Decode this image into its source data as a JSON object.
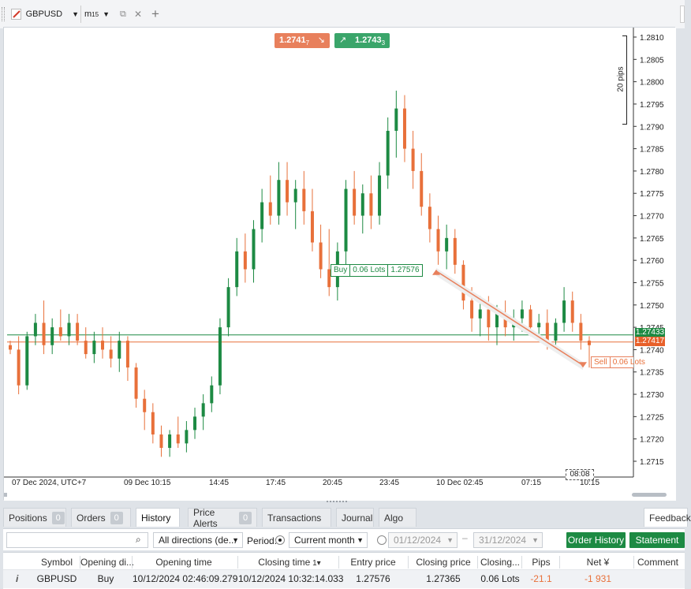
{
  "tab": {
    "symbol": "GBPUSD",
    "timeframe": "m",
    "timeframe_sub": "15"
  },
  "prices": {
    "sell_main": "1.2741",
    "sell_sub": "7",
    "buy_main": "1.2743",
    "buy_sub": "3"
  },
  "pips_label": "20 pips",
  "y_ticks": [
    "1.2810",
    "1.2805",
    "1.2800",
    "1.2795",
    "1.2790",
    "1.2785",
    "1.2780",
    "1.2775",
    "1.2770",
    "1.2765",
    "1.2760",
    "1.2755",
    "1.2750",
    "1.2745",
    "1.2740",
    "1.2735",
    "1.2730",
    "1.2725",
    "1.2720",
    "1.2715"
  ],
  "price_tags": {
    "ask": "1.27433",
    "bid": "1.27417"
  },
  "x_labels": [
    "07 Dec 2024, UTC+7",
    "09 Dec 10:15",
    "14:45",
    "17:45",
    "20:45",
    "23:45",
    "10 Dec 02:45",
    "07:15",
    "10:15"
  ],
  "crosshair_time": "08:08",
  "trade_buy": {
    "side": "Buy",
    "lots": "0.06 Lots",
    "price": "1.27576"
  },
  "trade_sell": {
    "side": "Sell",
    "lots": "0.06 Lots"
  },
  "colors": {
    "up": "#1d8a43",
    "down": "#e8703a",
    "sell": "#e8805c",
    "buy": "#3aa56a"
  },
  "bottom_tabs": [
    {
      "label": "Positions",
      "count": "0"
    },
    {
      "label": "Orders",
      "count": "0"
    },
    {
      "label": "History"
    },
    {
      "label": "Price Alerts",
      "count": "0"
    },
    {
      "label": "Transactions"
    },
    {
      "label": "Journal"
    },
    {
      "label": "Algo"
    }
  ],
  "feedback_label": "Feedback",
  "filters": {
    "search_placeholder": "",
    "direction": "All directions (de...",
    "period_label": "Period:",
    "period_value": "Current month",
    "date_from": "01/12/2024",
    "date_to": "31/12/2024",
    "order_history_btn": "Order History",
    "statement_btn": "Statement"
  },
  "table": {
    "headers": [
      "Symbol",
      "Opening di...",
      "Opening time",
      "Closing time",
      "Entry price",
      "Closing price",
      "Closing...",
      "Pips",
      "Net ¥",
      "Comment"
    ],
    "sort_index": "1",
    "rows": [
      {
        "info": "i",
        "symbol": "GBPUSD",
        "direction": "Buy",
        "open_time": "10/12/2024 02:46:09.279",
        "close_time": "10/12/2024 10:32:14.033",
        "entry": "1.27576",
        "close": "1.27365",
        "lots": "0.06 Lots",
        "pips": "-21.1",
        "net": "-1 931",
        "comment": ""
      }
    ]
  },
  "chart_data": {
    "type": "candlestick",
    "ylim": [
      1.2713,
      1.2812
    ],
    "candles": [
      [
        1.2741,
        1.2742,
        1.2739,
        1.274
      ],
      [
        1.274,
        1.2743,
        1.273,
        1.2732
      ],
      [
        1.2732,
        1.2744,
        1.2731,
        1.2743
      ],
      [
        1.2743,
        1.2748,
        1.2741,
        1.2746
      ],
      [
        1.2746,
        1.2751,
        1.2739,
        1.2741
      ],
      [
        1.2741,
        1.2747,
        1.2739,
        1.2745
      ],
      [
        1.2745,
        1.2749,
        1.2742,
        1.2743
      ],
      [
        1.2743,
        1.2748,
        1.2741,
        1.2746
      ],
      [
        1.2746,
        1.2748,
        1.2741,
        1.2742
      ],
      [
        1.2742,
        1.2745,
        1.2738,
        1.2739
      ],
      [
        1.2739,
        1.2744,
        1.2737,
        1.2742
      ],
      [
        1.2742,
        1.2745,
        1.2738,
        1.274
      ],
      [
        1.274,
        1.2743,
        1.2736,
        1.2738
      ],
      [
        1.2738,
        1.2744,
        1.2735,
        1.2742
      ],
      [
        1.2742,
        1.2743,
        1.2733,
        1.2736
      ],
      [
        1.2736,
        1.2737,
        1.2727,
        1.2729
      ],
      [
        1.2729,
        1.2731,
        1.2722,
        1.2726
      ],
      [
        1.2726,
        1.2728,
        1.2719,
        1.2721
      ],
      [
        1.2721,
        1.2723,
        1.2716,
        1.2718
      ],
      [
        1.2718,
        1.2722,
        1.2716,
        1.2721
      ],
      [
        1.2721,
        1.2725,
        1.2718,
        1.2719
      ],
      [
        1.2719,
        1.2724,
        1.2717,
        1.2722
      ],
      [
        1.2722,
        1.2727,
        1.272,
        1.2725
      ],
      [
        1.2725,
        1.273,
        1.2722,
        1.2728
      ],
      [
        1.2728,
        1.2734,
        1.2726,
        1.2732
      ],
      [
        1.2732,
        1.2747,
        1.273,
        1.2745
      ],
      [
        1.2745,
        1.2756,
        1.2743,
        1.2754
      ],
      [
        1.2754,
        1.2765,
        1.2752,
        1.2762
      ],
      [
        1.2762,
        1.2766,
        1.2755,
        1.2758
      ],
      [
        1.2758,
        1.2769,
        1.2755,
        1.2767
      ],
      [
        1.2767,
        1.2776,
        1.2764,
        1.2773
      ],
      [
        1.2773,
        1.2779,
        1.2768,
        1.277
      ],
      [
        1.277,
        1.2782,
        1.2768,
        1.2778
      ],
      [
        1.2778,
        1.2782,
        1.277,
        1.2773
      ],
      [
        1.2773,
        1.2778,
        1.2767,
        1.2776
      ],
      [
        1.2776,
        1.278,
        1.2768,
        1.2771
      ],
      [
        1.2771,
        1.2776,
        1.2762,
        1.2764
      ],
      [
        1.2764,
        1.2768,
        1.2756,
        1.2758
      ],
      [
        1.2758,
        1.2767,
        1.2752,
        1.2754
      ],
      [
        1.2754,
        1.2764,
        1.2751,
        1.2762
      ],
      [
        1.2762,
        1.2778,
        1.2758,
        1.2776
      ],
      [
        1.2776,
        1.278,
        1.2768,
        1.277
      ],
      [
        1.277,
        1.2777,
        1.2766,
        1.2775
      ],
      [
        1.2775,
        1.2779,
        1.2767,
        1.277
      ],
      [
        1.277,
        1.2782,
        1.2768,
        1.2779
      ],
      [
        1.2779,
        1.2792,
        1.2776,
        1.2789
      ],
      [
        1.2789,
        1.2798,
        1.2783,
        1.2794
      ],
      [
        1.2794,
        1.2797,
        1.2782,
        1.2785
      ],
      [
        1.2785,
        1.2789,
        1.2776,
        1.278
      ],
      [
        1.278,
        1.2784,
        1.277,
        1.2772
      ],
      [
        1.2772,
        1.2775,
        1.2764,
        1.2767
      ],
      [
        1.2767,
        1.277,
        1.2759,
        1.2762
      ],
      [
        1.2762,
        1.2768,
        1.2758,
        1.2765
      ],
      [
        1.2765,
        1.2767,
        1.2757,
        1.2759
      ],
      [
        1.2759,
        1.276,
        1.2749,
        1.2751
      ],
      [
        1.2751,
        1.2754,
        1.2744,
        1.2747
      ],
      [
        1.2747,
        1.2752,
        1.2743,
        1.2749
      ],
      [
        1.2749,
        1.2752,
        1.2742,
        1.2745
      ],
      [
        1.2745,
        1.275,
        1.2741,
        1.2748
      ],
      [
        1.2748,
        1.2751,
        1.2743,
        1.2745
      ],
      [
        1.2745,
        1.2749,
        1.2742,
        1.2747
      ],
      [
        1.2747,
        1.2751,
        1.2744,
        1.2749
      ],
      [
        1.2749,
        1.275,
        1.2743,
        1.2745
      ],
      [
        1.2745,
        1.2748,
        1.2742,
        1.2746
      ],
      [
        1.2746,
        1.2749,
        1.274,
        1.2742
      ],
      [
        1.2742,
        1.2747,
        1.274,
        1.2746
      ],
      [
        1.2746,
        1.2754,
        1.2744,
        1.2751
      ],
      [
        1.2751,
        1.2753,
        1.2744,
        1.2746
      ],
      [
        1.2746,
        1.2748,
        1.274,
        1.2742
      ],
      [
        1.2742,
        1.2743,
        1.2736,
        1.2741
      ]
    ]
  }
}
